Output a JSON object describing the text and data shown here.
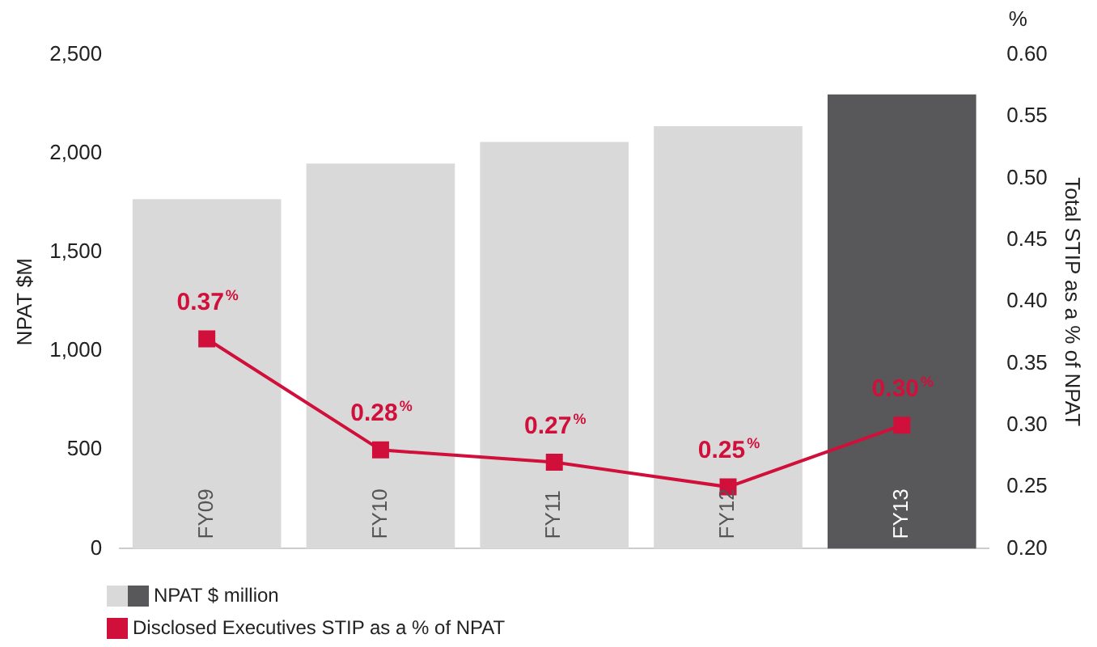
{
  "chart_data": {
    "type": "bar",
    "categories": [
      "FY09",
      "FY10",
      "FY11",
      "FY12",
      "FY13"
    ],
    "series": [
      {
        "name": "NPAT $ million",
        "colors": [
          "#d9d9da",
          "#d9d9da",
          "#d9d9da",
          "#d9d9da",
          "#58585a"
        ],
        "values": [
          1770,
          1950,
          2060,
          2140,
          2300
        ]
      },
      {
        "name": "Disclosed Executives STIP as a % of NPAT",
        "type": "line",
        "axis": "y2",
        "color": "#d0103a",
        "marker": "square",
        "values": [
          0.37,
          0.28,
          0.27,
          0.25,
          0.3
        ],
        "value_labels": [
          "0.37$^{%}$",
          "0.28$^{%}$",
          "0.27$^{%}$",
          "0.25$^{%}$",
          "0.30$^{%}$"
        ]
      }
    ],
    "ylabel": "NPAT $M",
    "y2label": "Total STIP as a % of NPAT",
    "annotations": [
      "%"
    ],
    "ylim": [
      0,
      2500
    ],
    "yticks": [
      0,
      500,
      {
        "value": 1000,
        "label": "1,000"
      },
      {
        "value": 1500,
        "label": "1,500"
      },
      {
        "value": 2000,
        "label": "2,000"
      },
      {
        "value": 2500,
        "label": "2,500"
      }
    ],
    "y2lim": [
      0.2,
      0.6
    ],
    "y2ticks": [
      {
        "value": 0.2,
        "label": "0.20"
      },
      {
        "value": 0.25,
        "label": "0.25"
      },
      {
        "value": 0.3,
        "label": "0.30"
      },
      {
        "value": 0.35,
        "label": "0.35"
      },
      {
        "value": 0.4,
        "label": "0.40"
      },
      {
        "value": 0.45,
        "label": "0.45"
      },
      {
        "value": 0.5,
        "label": "0.50"
      },
      {
        "value": 0.55,
        "label": "0.55"
      },
      {
        "value": 0.6,
        "label": "0.60"
      }
    ],
    "grid": false,
    "legend": "bottom left"
  }
}
